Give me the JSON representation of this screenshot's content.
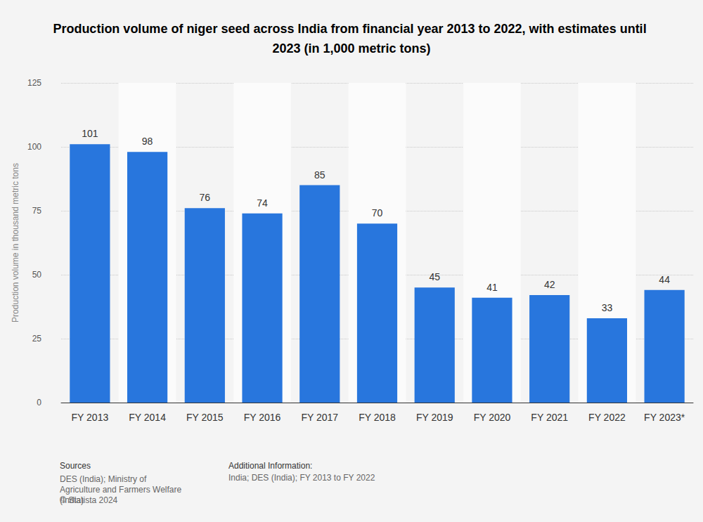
{
  "chart_data": {
    "type": "bar",
    "title": "Production volume of niger seed across India from financial year 2013 to 2022, with estimates until 2023 (in 1,000 metric tons)",
    "y_label": "Production volume in thousand metric tons",
    "categories": [
      "FY 2013",
      "FY 2014",
      "FY 2015",
      "FY 2016",
      "FY 2017",
      "FY 2018",
      "FY 2019",
      "FY 2020",
      "FY 2021",
      "FY 2022",
      "FY 2023*"
    ],
    "values": [
      101,
      98,
      76,
      74,
      85,
      70,
      45,
      41,
      42,
      33,
      44
    ],
    "color": "#2876dd",
    "ylim": [
      0,
      125
    ],
    "yticks": [
      0,
      25,
      50,
      75,
      100,
      125
    ],
    "grid": true,
    "data_labels": true,
    "annotations": {
      "sources_heading": "Sources",
      "sources": "DES (India); Ministry of Agriculture and Farmers Welfare (India)",
      "copyright": "© Statista 2024",
      "info_heading": "Additional Information:",
      "info": "India; DES (India); FY 2013 to FY 2022"
    }
  }
}
